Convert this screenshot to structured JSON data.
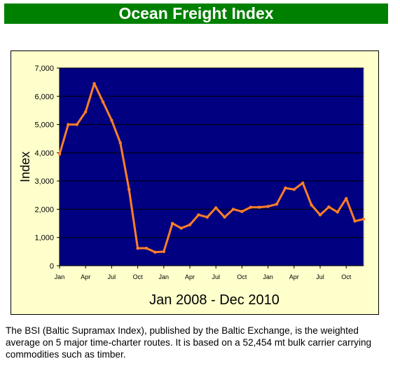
{
  "page": {
    "title": "Ocean Freight Index",
    "caption": "The BSI (Baltic Supramax Index), published by the Baltic Exchange, is the weighted average on 5 major time-charter routes. It is based on a 52,454 mt bulk carrier carrying commodities such as timber."
  },
  "colors": {
    "title_bg": "#008000",
    "panel_bg": "#ffffcc",
    "plot_bg": "#000080",
    "line": "#ff7f27",
    "gridline": "#000000"
  },
  "chart_data": {
    "type": "line",
    "title": "",
    "xlabel": "Jan 2008 - Dec 2010",
    "ylabel": "Index",
    "ylim": [
      0,
      7000
    ],
    "yticks": [
      0,
      1000,
      2000,
      3000,
      4000,
      5000,
      6000,
      7000
    ],
    "ytick_labels": [
      "0",
      "1,000",
      "2,000",
      "3,000",
      "4,000",
      "5,000",
      "6,000",
      "7,000"
    ],
    "grid": true,
    "x_month_index_range": [
      0,
      35
    ],
    "xtick_month_index": [
      0,
      3,
      6,
      9,
      12,
      15,
      18,
      21,
      24,
      27,
      30,
      33
    ],
    "xtick_labels": [
      "Jan",
      "Apr",
      "Jul",
      "Oct",
      "Jan",
      "Apr",
      "Jul",
      "Oct",
      "Jan",
      "Apr",
      "Jul",
      "Oct"
    ],
    "series": [
      {
        "values": [
          3950,
          5000,
          5000,
          5450,
          6450,
          5800,
          5150,
          4350,
          2700,
          620,
          620,
          480,
          500,
          1500,
          1330,
          1450,
          1800,
          1720,
          2050,
          1720,
          2000,
          1920,
          2070,
          2070,
          2100,
          2180,
          2750,
          2700,
          2930,
          2150,
          1800,
          2080,
          1900,
          2380,
          1580,
          1650
        ]
      }
    ]
  }
}
